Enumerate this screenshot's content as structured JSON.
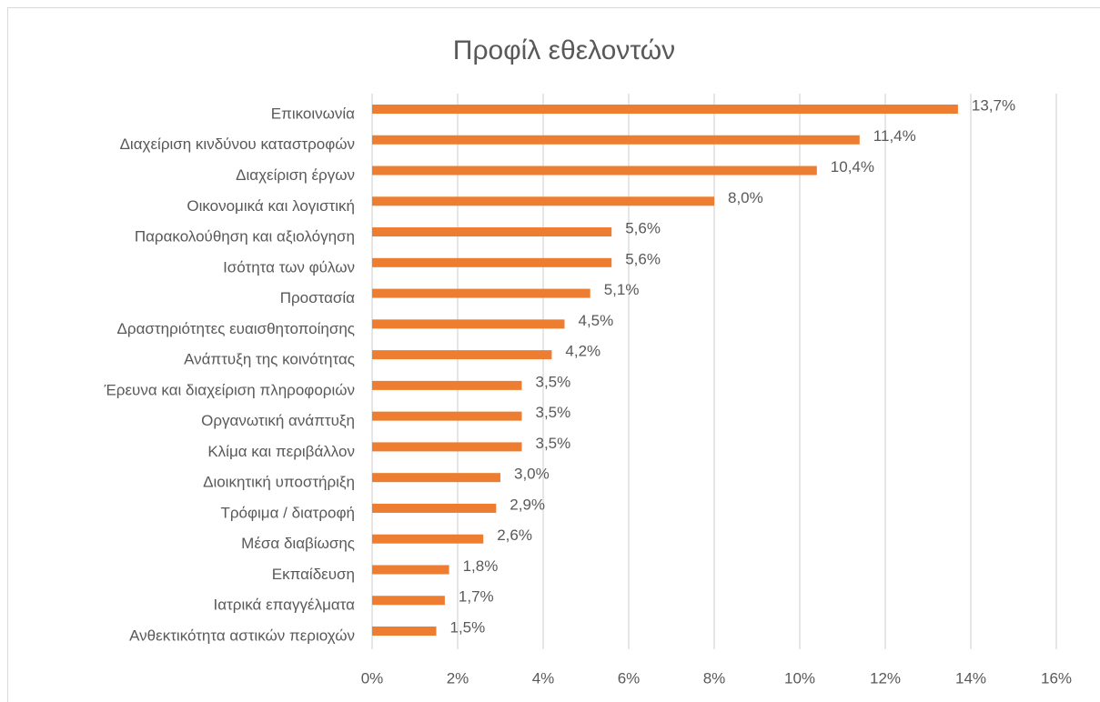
{
  "chart_data": {
    "type": "barh",
    "title": "Προφίλ εθελοντών",
    "categories": [
      "Επικοινωνία",
      "Διαχείριση κινδύνου καταστροφών",
      "Διαχείριση έργων",
      "Οικονομικά και λογιστική",
      "Παρακολούθηση και αξιολόγηση",
      "Ισότητα των φύλων",
      "Προστασία",
      "Δραστηριότητες ευαισθητοποίησης",
      "Ανάπτυξη της κοινότητας",
      "Έρευνα και διαχείριση πληροφοριών",
      "Οργανωτική ανάπτυξη",
      "Κλίμα και περιβάλλον",
      "Διοικητική υποστήριξη",
      "Τρόφιμα / διατροφή",
      "Μέσα διαβίωσης",
      "Εκπαίδευση",
      "Ιατρικά επαγγέλματα",
      "Ανθεκτικότητα αστικών περιοχών"
    ],
    "values": [
      13.7,
      11.4,
      10.4,
      8.0,
      5.6,
      5.6,
      5.1,
      4.5,
      4.2,
      3.5,
      3.5,
      3.5,
      3.0,
      2.9,
      2.6,
      1.8,
      1.7,
      1.5
    ],
    "value_labels": [
      "13,7%",
      "11,4%",
      "10,4%",
      "8,0%",
      "5,6%",
      "5,6%",
      "5,1%",
      "4,5%",
      "4,2%",
      "3,5%",
      "3,5%",
      "3,5%",
      "3,0%",
      "2,9%",
      "2,6%",
      "1,8%",
      "1,7%",
      "1,5%"
    ],
    "color": "#ed7d31",
    "xlim": [
      0,
      16
    ],
    "xticks": [
      {
        "value": 0,
        "label": "0%"
      },
      {
        "value": 2,
        "label": "2%"
      },
      {
        "value": 4,
        "label": "4%"
      },
      {
        "value": 6,
        "label": "6%"
      },
      {
        "value": 8,
        "label": "8%"
      },
      {
        "value": 10,
        "label": "10%"
      },
      {
        "value": 12,
        "label": "12%"
      },
      {
        "value": 14,
        "label": "14%"
      },
      {
        "value": 16,
        "label": "16%"
      }
    ],
    "grid": true
  }
}
